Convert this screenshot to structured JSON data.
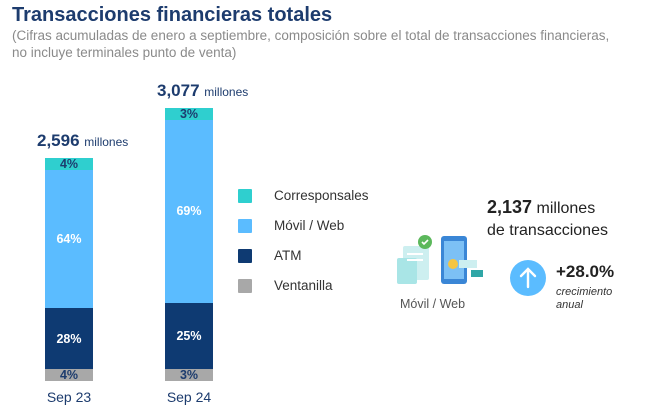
{
  "title": "Transacciones financieras totales",
  "subtitle": "(Cifras acumuladas de enero a septiembre, composición sobre el total de transacciones financieras, no incluye terminales punto de venta)",
  "chart_data": {
    "type": "bar",
    "stacked": true,
    "unit": "%",
    "categories": [
      "Sep 23",
      "Sep 24"
    ],
    "totals": [
      {
        "value": "2,596",
        "unit": "millones"
      },
      {
        "value": "3,077",
        "unit": "millones"
      }
    ],
    "series": [
      {
        "name": "Ventanilla",
        "color": "#a8a8a8",
        "values": [
          4,
          3
        ]
      },
      {
        "name": "ATM",
        "color": "#0e3a72",
        "values": [
          28,
          25
        ]
      },
      {
        "name": "Móvil / Web",
        "color": "#5bbcff",
        "values": [
          64,
          69
        ]
      },
      {
        "name": "Corresponsales",
        "color": "#2fcfcf",
        "values": [
          4,
          3
        ]
      }
    ],
    "legend": [
      "Corresponsales",
      "Móvil / Web",
      "ATM",
      "Ventanilla"
    ]
  },
  "highlight": {
    "value": "2,137",
    "unit": "millones",
    "line2": "de transacciones",
    "icon_label": "Móvil / Web",
    "growth": "+28.0%",
    "growth_label": "crecimiento anual"
  }
}
